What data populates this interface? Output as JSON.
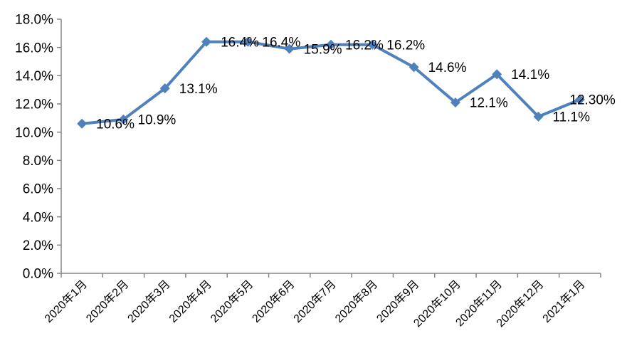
{
  "page": {
    "background_color": "#FFFFFF"
  },
  "chart_data": {
    "type": "line",
    "title": "",
    "xlabel": "",
    "ylabel": "",
    "categories": [
      "2020年1月",
      "2020年2月",
      "2020年3月",
      "2020年4月",
      "2020年5月",
      "2020年6月",
      "2020年7月",
      "2020年8月",
      "2020年9月",
      "2020年10月",
      "2020年11月",
      "2020年12月",
      "2021年1月"
    ],
    "series": [
      {
        "name": "",
        "color": "#4F81BD",
        "marker": "diamond",
        "values": [
          10.6,
          10.9,
          13.1,
          16.4,
          16.4,
          15.9,
          16.2,
          16.2,
          14.6,
          12.1,
          14.1,
          11.1,
          12.3
        ],
        "data_labels": [
          "10.6%",
          "10.9%",
          "13.1%",
          "16.4%",
          "16.4%",
          "15.9%",
          "16.2%",
          "16.2%",
          "14.6%",
          "12.1%",
          "14.1%",
          "11.1%",
          "12.30%"
        ]
      }
    ],
    "ylim": [
      0,
      18
    ],
    "y_tick_labels": [
      "0.0%",
      "2.0%",
      "4.0%",
      "6.0%",
      "8.0%",
      "10.0%",
      "12.0%",
      "14.0%",
      "16.0%",
      "18.0%"
    ],
    "grid": false,
    "legend_position": "none",
    "x_label_rotation_deg": -45,
    "axis_color": "#868686",
    "text_color": "#000000"
  }
}
